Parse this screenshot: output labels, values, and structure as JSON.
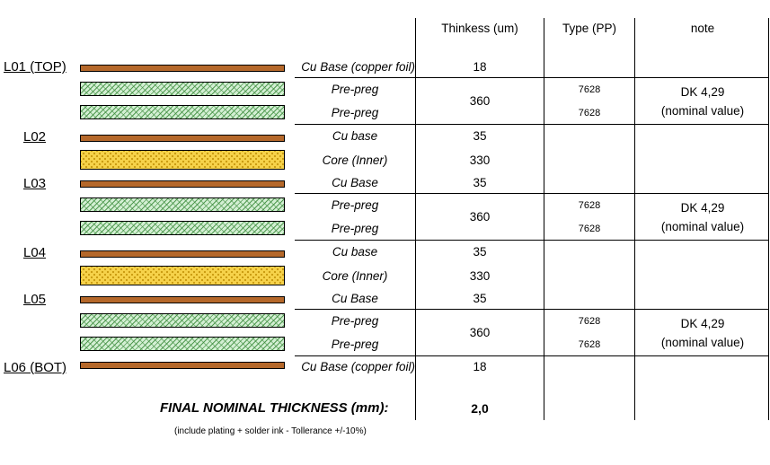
{
  "headers": {
    "thickness": "Thinkess (um)",
    "type": "Type (PP)",
    "note": "note"
  },
  "layer_labels": [
    "L01 (TOP)",
    "L02",
    "L03",
    "L04",
    "L05",
    "L06 (BOT)"
  ],
  "materials": {
    "cu_foil": "Cu Base (copper foil)",
    "prepreg": "Pre-preg",
    "cu_base_lower": "Cu base",
    "cu_base": "Cu Base",
    "core": "Core (Inner)"
  },
  "values": {
    "cu_foil": "18",
    "prepreg_pair": "360",
    "cu": "35",
    "core": "330"
  },
  "pp_type": "7628",
  "note": {
    "line1": "DK 4,29",
    "line2": "(nominal value)"
  },
  "final": {
    "label": "FINAL NOMINAL THICKNESS (mm):",
    "value": "2,0",
    "footnote": "(include plating + solder ink - Tollerance +/-10%)"
  },
  "colors": {
    "copper": "#b5682a",
    "prepreg": "#d3efd3",
    "core": "#f6d24a"
  }
}
